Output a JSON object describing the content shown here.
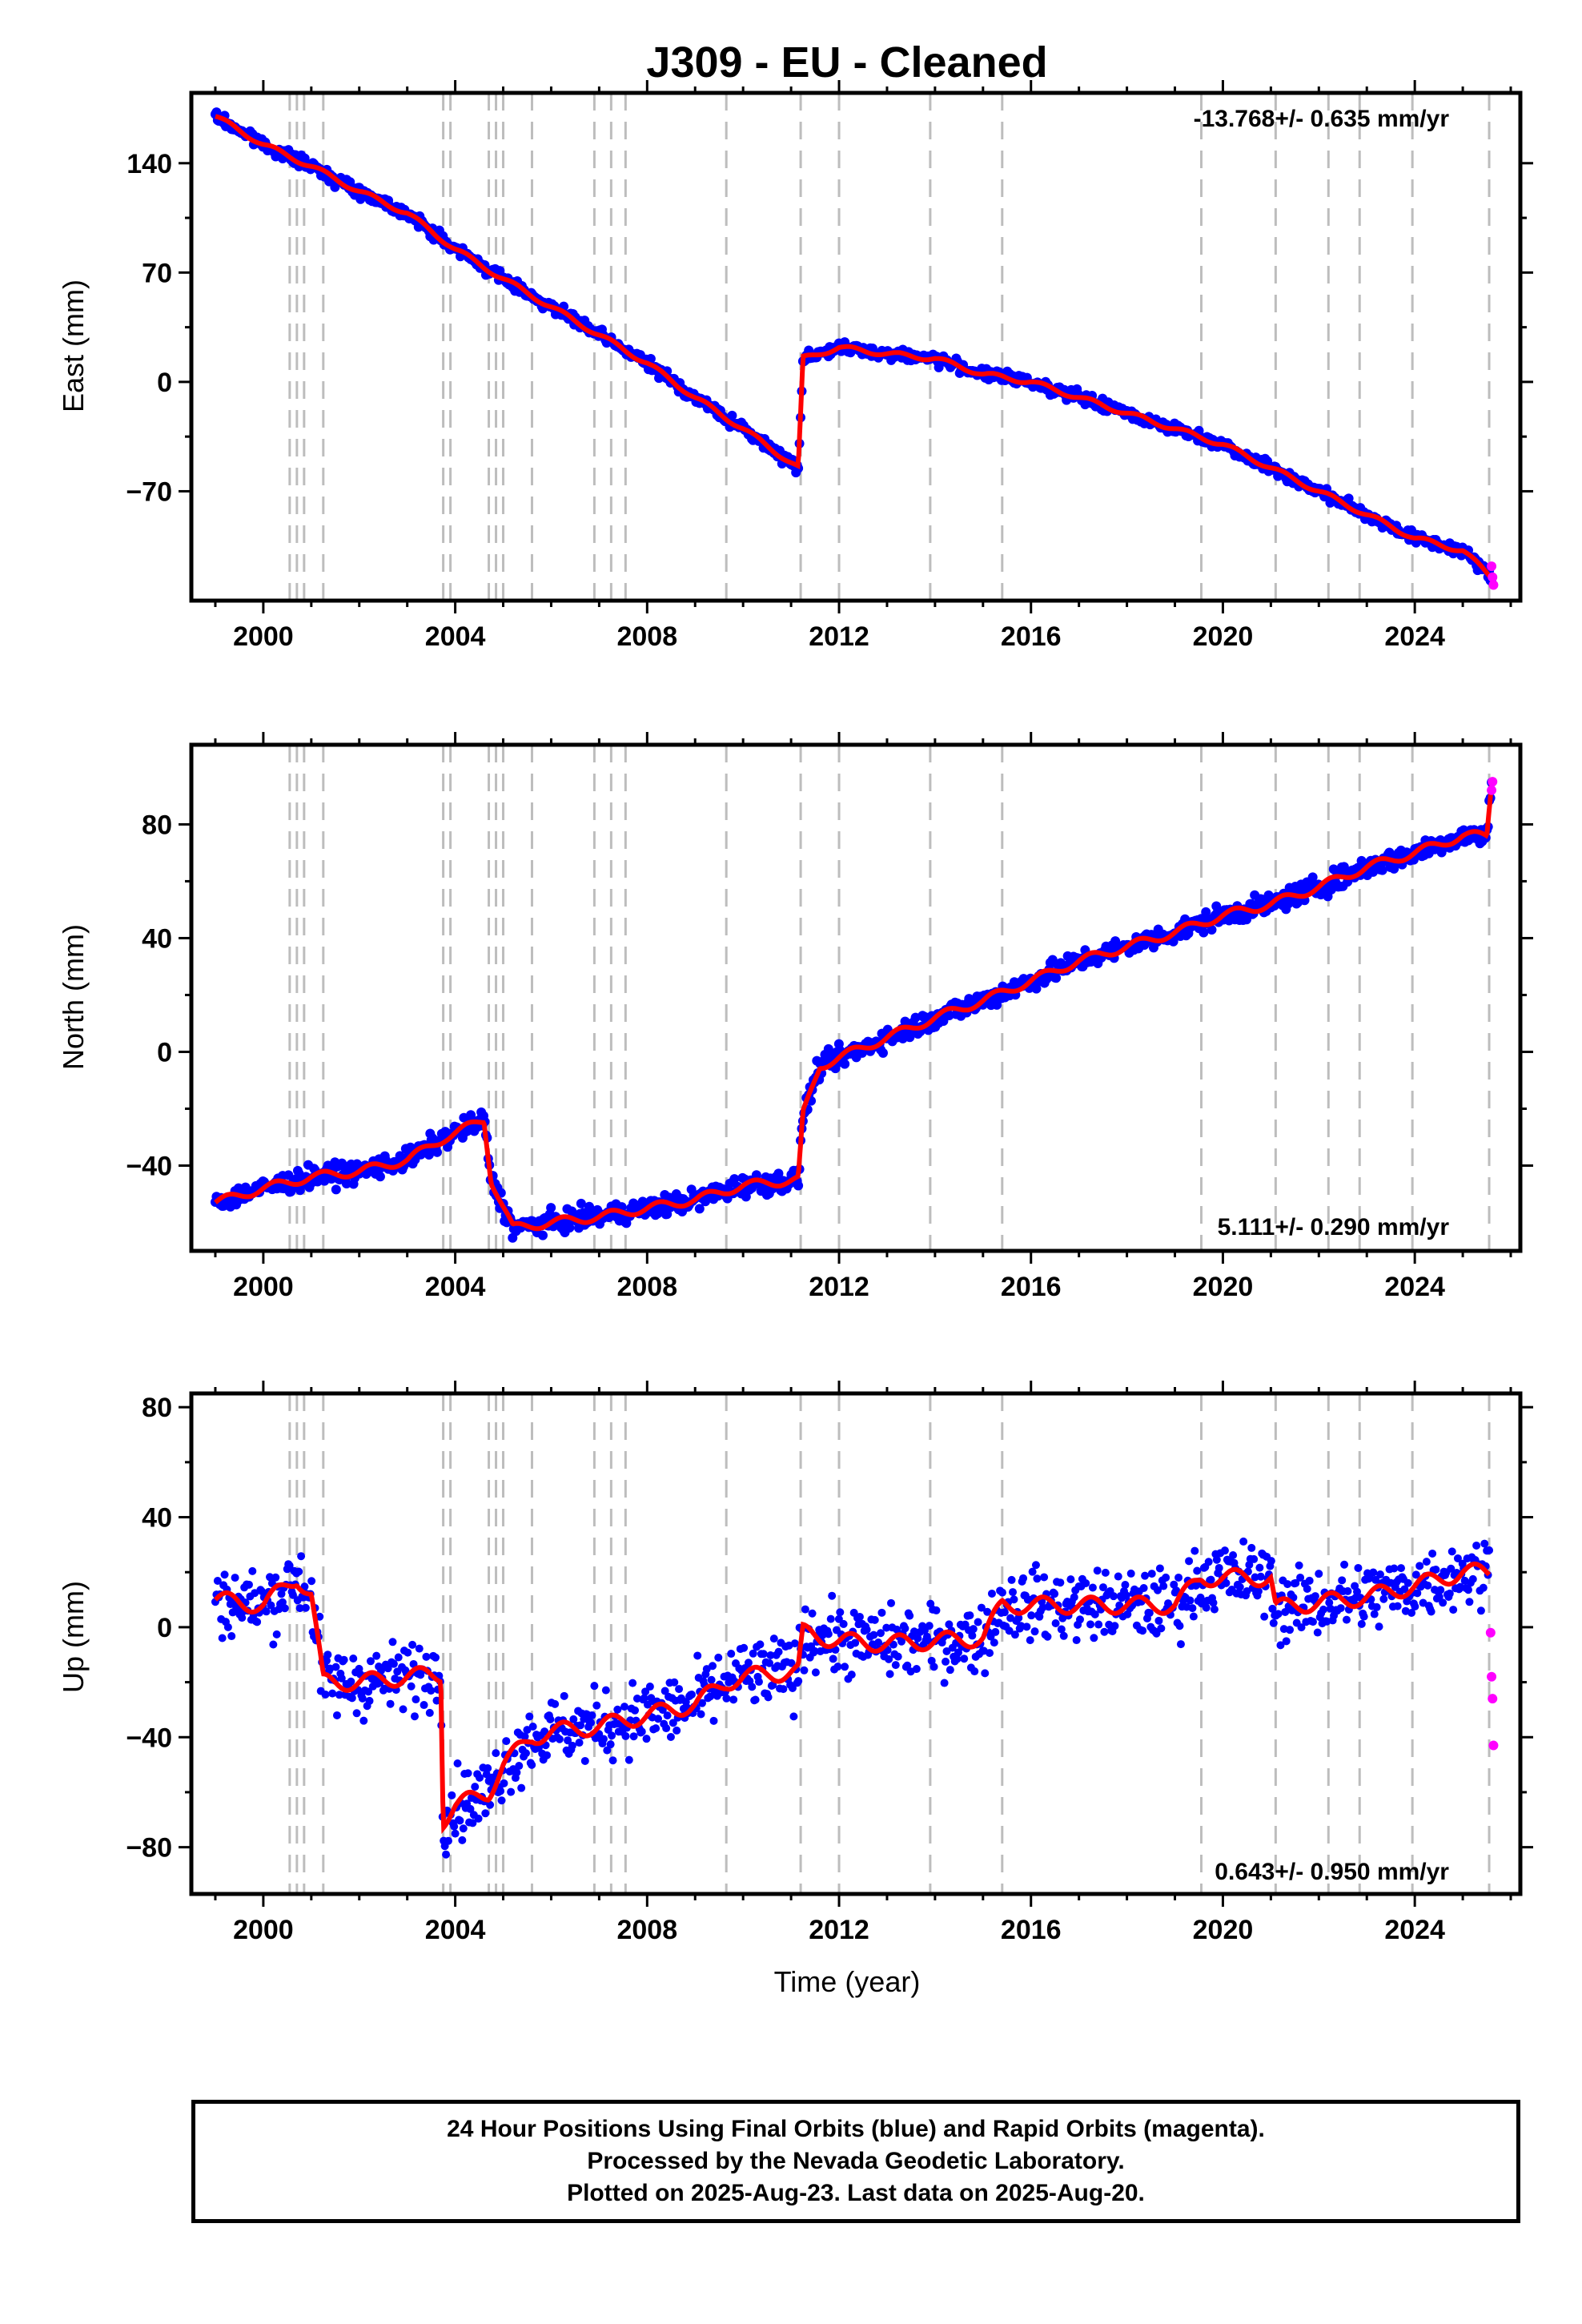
{
  "title": "J309  - EU - Cleaned",
  "colors": {
    "final_orbits": "#0000ff",
    "rapid_orbits": "#ff00ff",
    "model": "#ff0000",
    "offset_lines": "#bdbdbd",
    "frame": "#000000"
  },
  "footer": {
    "line1": "24 Hour Positions Using Final Orbits (blue) and Rapid Orbits (magenta).",
    "line2": "Processed by the Nevada Geodetic Laboratory.",
    "line3": "Plotted on 2025-Aug-23. Last data on 2025-Aug-20."
  },
  "chart_data": [
    {
      "type": "scatter",
      "panel": "east",
      "ylabel": "East (mm)",
      "rate_label": "-13.768+/- 0.635 mm/yr",
      "rate_position": "top-right",
      "xlim": [
        1998.5,
        2026.2
      ],
      "ylim": [
        -140,
        185
      ],
      "xticks": [
        2000,
        2004,
        2008,
        2012,
        2016,
        2020,
        2024
      ],
      "yticks": [
        -70,
        0,
        70,
        140
      ],
      "offset_epochs": [
        2000.55,
        2000.7,
        2000.85,
        2001.25,
        2003.75,
        2003.9,
        2004.7,
        2004.85,
        2005.0,
        2005.6,
        2006.9,
        2007.25,
        2007.55,
        2009.65,
        2011.2,
        2012.0,
        2013.9,
        2015.4,
        2019.55,
        2021.1,
        2022.2,
        2022.85,
        2023.95,
        2025.55
      ],
      "series": [
        {
          "name": "Final Orbits (blue)",
          "x": [
            1999.0,
            2000.0,
            2001.0,
            2002.0,
            2003.0,
            2004.0,
            2005.0,
            2006.0,
            2007.0,
            2008.0,
            2009.0,
            2010.0,
            2011.15,
            2011.25,
            2012.0,
            2013.0,
            2014.0,
            2015.0,
            2016.0,
            2017.0,
            2018.0,
            2019.0,
            2020.0,
            2021.0,
            2022.0,
            2023.0,
            2024.0,
            2025.0,
            2025.6
          ],
          "y": [
            170,
            152,
            138,
            122,
            108,
            85,
            66,
            48,
            30,
            12,
            -10,
            -30,
            -55,
            15,
            22,
            18,
            15,
            5,
            0,
            -10,
            -20,
            -30,
            -40,
            -55,
            -70,
            -85,
            -100,
            -108,
            -125
          ]
        },
        {
          "name": "Rapid Orbits (magenta)",
          "x": [
            2025.6,
            2025.62,
            2025.64
          ],
          "y": [
            -118,
            -125,
            -130
          ]
        },
        {
          "name": "Model (red)",
          "x": [
            1999.0,
            2000.0,
            2001.0,
            2002.0,
            2003.0,
            2004.0,
            2005.0,
            2006.0,
            2007.0,
            2008.0,
            2009.0,
            2010.0,
            2011.15,
            2011.25,
            2012.0,
            2013.0,
            2014.0,
            2015.0,
            2016.0,
            2017.0,
            2018.0,
            2019.0,
            2020.0,
            2021.0,
            2022.0,
            2023.0,
            2024.0,
            2025.0,
            2025.6
          ],
          "y": [
            170,
            152,
            138,
            122,
            108,
            85,
            66,
            48,
            30,
            12,
            -10,
            -30,
            -55,
            15,
            22,
            18,
            15,
            5,
            0,
            -10,
            -20,
            -30,
            -40,
            -55,
            -70,
            -85,
            -100,
            -108,
            -125
          ]
        }
      ]
    },
    {
      "type": "scatter",
      "panel": "north",
      "ylabel": "North (mm)",
      "rate_label": "5.111+/- 0.290 mm/yr",
      "rate_position": "bottom-right",
      "xlim": [
        1998.5,
        2026.2
      ],
      "ylim": [
        -70,
        108
      ],
      "xticks": [
        2000,
        2004,
        2008,
        2012,
        2016,
        2020,
        2024
      ],
      "yticks": [
        -40,
        0,
        40,
        80
      ],
      "offset_epochs": [
        2000.55,
        2000.7,
        2000.85,
        2001.25,
        2003.75,
        2003.9,
        2004.7,
        2004.85,
        2005.0,
        2005.6,
        2006.9,
        2007.25,
        2007.55,
        2009.65,
        2011.2,
        2012.0,
        2013.9,
        2015.4,
        2019.55,
        2021.1,
        2022.2,
        2022.85,
        2023.95,
        2025.55
      ],
      "series": [
        {
          "name": "Final Orbits (blue)",
          "x": [
            1999.0,
            2000.0,
            2001.0,
            2002.0,
            2003.0,
            2003.8,
            2004.6,
            2004.75,
            2005.2,
            2006.0,
            2007.0,
            2008.0,
            2009.0,
            2010.0,
            2011.15,
            2011.25,
            2011.6,
            2012.0,
            2013.0,
            2014.0,
            2015.0,
            2016.0,
            2017.0,
            2018.0,
            2019.0,
            2020.0,
            2021.0,
            2022.0,
            2023.0,
            2024.0,
            2025.0,
            2025.5,
            2025.6
          ],
          "y": [
            -53,
            -48,
            -44,
            -42,
            -38,
            -30,
            -24,
            -45,
            -62,
            -60,
            -58,
            -55,
            -52,
            -47,
            -45,
            -22,
            -5,
            -2,
            5,
            12,
            18,
            25,
            32,
            37,
            42,
            48,
            52,
            58,
            65,
            70,
            76,
            76,
            95
          ]
        },
        {
          "name": "Rapid Orbits (magenta)",
          "x": [
            2025.6,
            2025.62
          ],
          "y": [
            92,
            95
          ]
        },
        {
          "name": "Model (red)",
          "x": [
            1999.0,
            2000.0,
            2001.0,
            2002.0,
            2003.0,
            2003.8,
            2004.6,
            2004.75,
            2005.2,
            2006.0,
            2007.0,
            2008.0,
            2009.0,
            2010.0,
            2011.15,
            2011.25,
            2011.6,
            2012.0,
            2013.0,
            2014.0,
            2015.0,
            2016.0,
            2017.0,
            2018.0,
            2019.0,
            2020.0,
            2021.0,
            2022.0,
            2023.0,
            2024.0,
            2025.0,
            2025.5,
            2025.6
          ],
          "y": [
            -53,
            -48,
            -44,
            -42,
            -38,
            -30,
            -24,
            -45,
            -62,
            -60,
            -58,
            -55,
            -52,
            -47,
            -45,
            -22,
            -5,
            -2,
            5,
            12,
            18,
            25,
            32,
            37,
            42,
            48,
            52,
            58,
            65,
            70,
            76,
            76,
            95
          ]
        }
      ]
    },
    {
      "type": "scatter",
      "panel": "up",
      "ylabel": "Up (mm)",
      "xlabel": "Time (year)",
      "rate_label": "0.643+/- 0.950 mm/yr",
      "rate_position": "bottom-right",
      "xlim": [
        1998.5,
        2026.2
      ],
      "ylim": [
        -97,
        85
      ],
      "xticks": [
        2000,
        2004,
        2008,
        2012,
        2016,
        2020,
        2024
      ],
      "yticks": [
        -80,
        -40,
        0,
        40,
        80
      ],
      "offset_epochs": [
        2000.55,
        2000.7,
        2000.85,
        2001.25,
        2003.75,
        2003.9,
        2004.7,
        2004.85,
        2005.0,
        2005.6,
        2006.9,
        2007.25,
        2007.55,
        2009.65,
        2011.2,
        2012.0,
        2013.9,
        2015.4,
        2019.55,
        2021.1,
        2022.2,
        2022.85,
        2023.95,
        2025.55
      ],
      "series": [
        {
          "name": "Final Orbits (blue)",
          "x": [
            1999.0,
            2000.0,
            2000.7,
            2001.0,
            2001.25,
            2002.0,
            2003.0,
            2003.7,
            2003.75,
            2004.0,
            2004.7,
            2005.0,
            2005.6,
            2006.0,
            2007.0,
            2008.0,
            2009.0,
            2009.65,
            2010.0,
            2011.15,
            2011.25,
            2012.0,
            2013.0,
            2014.0,
            2015.0,
            2015.4,
            2016.0,
            2017.0,
            2018.0,
            2019.0,
            2019.55,
            2020.0,
            2021.0,
            2021.1,
            2022.0,
            2023.0,
            2024.0,
            2025.0,
            2025.55
          ],
          "y": [
            10,
            8,
            18,
            12,
            -20,
            -20,
            -18,
            -17,
            -70,
            -65,
            -60,
            -50,
            -40,
            -38,
            -36,
            -32,
            -28,
            -20,
            -18,
            -16,
            -2,
            -5,
            -6,
            -5,
            -4,
            8,
            8,
            8,
            8,
            8,
            18,
            18,
            18,
            7,
            9,
            11,
            15,
            20,
            20
          ]
        },
        {
          "name": "Rapid Orbits (magenta)",
          "x": [
            2025.58,
            2025.6,
            2025.62,
            2025.64
          ],
          "y": [
            -2,
            -18,
            -26,
            -43
          ]
        },
        {
          "name": "Model (red)",
          "x": [
            1999.0,
            2000.0,
            2000.7,
            2001.0,
            2001.25,
            2002.0,
            2003.0,
            2003.7,
            2003.75,
            2004.0,
            2004.7,
            2005.0,
            2005.6,
            2006.0,
            2007.0,
            2008.0,
            2009.0,
            2009.65,
            2010.0,
            2011.15,
            2011.25,
            2012.0,
            2013.0,
            2014.0,
            2015.0,
            2015.4,
            2016.0,
            2017.0,
            2018.0,
            2019.0,
            2019.55,
            2020.0,
            2021.0,
            2021.1,
            2022.0,
            2023.0,
            2024.0,
            2025.0,
            2025.55
          ],
          "y": [
            10,
            8,
            18,
            12,
            -20,
            -20,
            -18,
            -17,
            -70,
            -65,
            -60,
            -50,
            -40,
            -38,
            -36,
            -32,
            -28,
            -20,
            -18,
            -16,
            -2,
            -5,
            -6,
            -5,
            -4,
            8,
            8,
            8,
            8,
            8,
            18,
            18,
            18,
            7,
            9,
            11,
            15,
            20,
            20
          ]
        }
      ]
    }
  ]
}
